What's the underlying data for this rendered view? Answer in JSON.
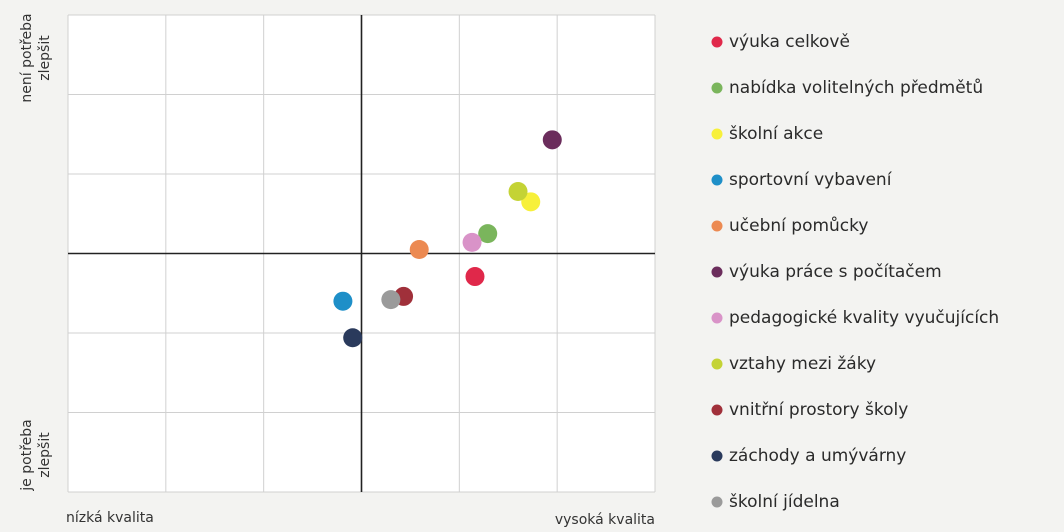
{
  "chart_data": {
    "type": "scatter",
    "y_top_label": [
      "není potřeba",
      "zlepšit"
    ],
    "y_bottom_label": [
      "je potřeba",
      "zlepšit"
    ],
    "x_low_label": "nízká kvalita",
    "x_high_label": "vysoká kvalita",
    "xlim": [
      -3,
      3
    ],
    "ylim": [
      -3,
      3
    ],
    "xticks": [
      -3,
      -2,
      -1,
      0,
      1,
      2,
      3
    ],
    "yticks": [
      -3,
      -2,
      -1,
      0,
      1,
      2,
      3
    ],
    "grid": true,
    "series": [
      {
        "name": "výuka celkově",
        "color": "#e0284a",
        "x": 1.16,
        "y": -0.29
      },
      {
        "name": "nabídka volitelných předmětů",
        "color": "#7ab55c",
        "x": 1.29,
        "y": 0.25
      },
      {
        "name": "školní akce",
        "color": "#f7f03a",
        "x": 1.73,
        "y": 0.65
      },
      {
        "name": "sportovní vybavení",
        "color": "#1e8fc8",
        "x": -0.19,
        "y": -0.6
      },
      {
        "name": "učební pomůcky",
        "color": "#ec8a52",
        "x": 0.59,
        "y": 0.05
      },
      {
        "name": "výuka práce s počítačem",
        "color": "#6b2d5c",
        "x": 1.95,
        "y": 1.43
      },
      {
        "name": "pedagogické kvality vyučujících",
        "color": "#d993c8",
        "x": 1.13,
        "y": 0.14
      },
      {
        "name": "vztahy mezi žáky",
        "color": "#c4d335",
        "x": 1.6,
        "y": 0.78
      },
      {
        "name": "vnitřní prostory školy",
        "color": "#a0303a",
        "x": 0.43,
        "y": -0.54
      },
      {
        "name": "záchody a umývárny",
        "color": "#2a3a5c",
        "x": -0.09,
        "y": -1.06
      },
      {
        "name": "školní jídelna",
        "color": "#9a9a9a",
        "x": 0.3,
        "y": -0.58
      }
    ]
  }
}
